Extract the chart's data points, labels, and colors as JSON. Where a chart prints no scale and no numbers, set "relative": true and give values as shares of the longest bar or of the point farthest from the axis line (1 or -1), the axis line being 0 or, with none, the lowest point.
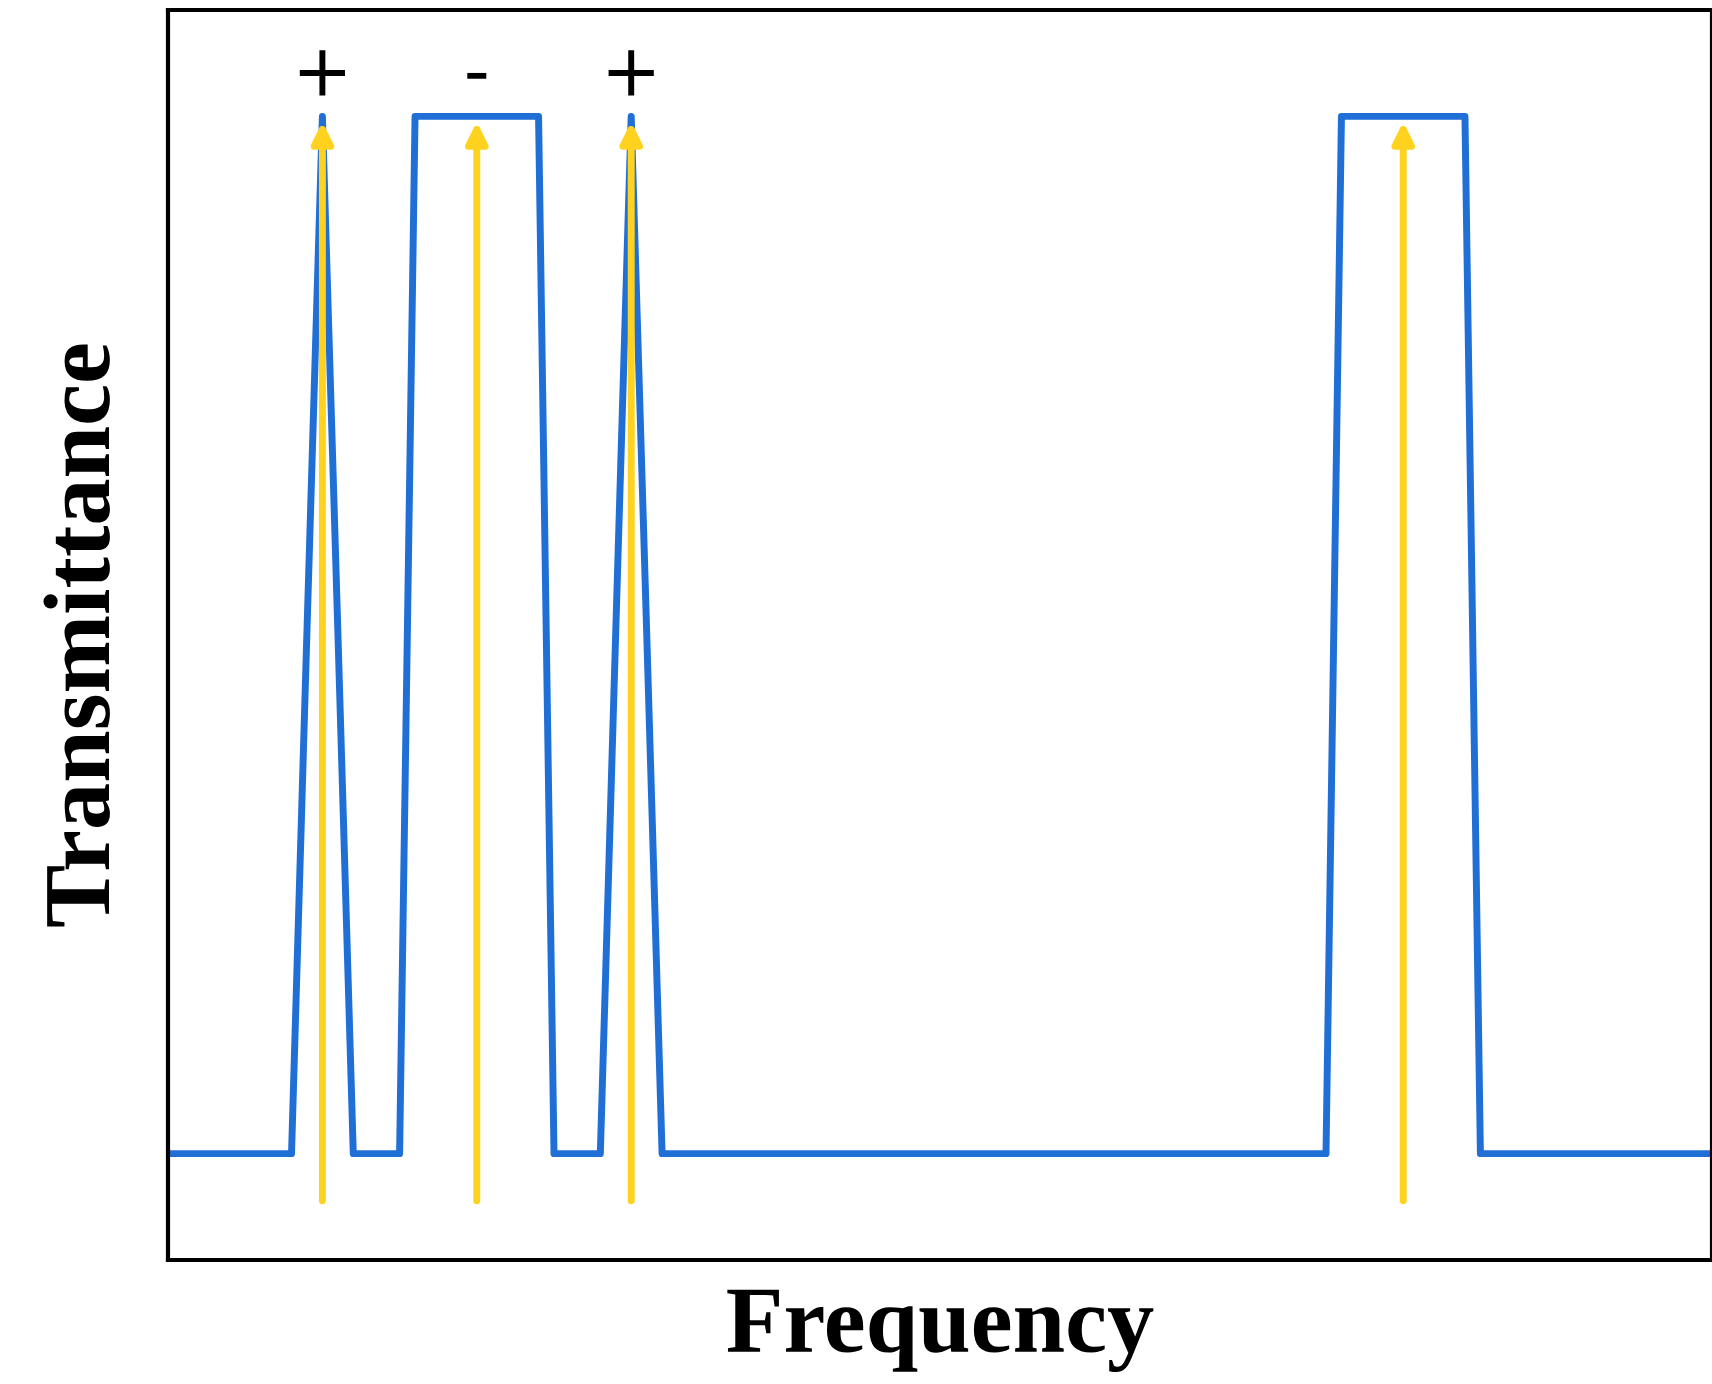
{
  "chart_data": {
    "type": "line",
    "relative": true,
    "xlabel": "Frequency",
    "ylabel": "Transmittance",
    "marker": "none",
    "line_style": "solid",
    "categories": [
      null,
      null,
      null,
      null,
      null,
      null,
      null,
      null,
      null,
      null,
      null,
      null,
      null,
      null,
      null,
      null,
      null,
      null,
      null,
      null,
      null,
      null,
      null,
      null,
      null,
      null,
      null,
      null,
      null,
      null,
      null,
      null,
      null,
      null,
      null,
      null,
      null,
      null,
      null,
      null,
      null,
      null,
      null,
      null,
      null,
      null,
      null,
      null,
      null,
      null,
      null,
      null,
      null,
      null,
      null,
      null,
      null,
      null,
      null,
      null,
      null,
      null,
      null,
      null,
      null,
      null,
      null,
      null,
      null,
      null,
      null,
      null,
      null,
      null,
      null,
      null,
      null,
      null,
      null,
      null,
      null,
      null,
      null,
      null,
      null,
      null,
      null,
      null,
      null,
      null,
      null,
      null,
      null,
      null,
      null,
      null,
      null,
      null,
      null,
      null,
      null
    ],
    "series": [
      {
        "color": "#1f6fd6",
        "values": [
          0.093,
          0.093,
          0.093,
          0.093,
          0.093,
          0.093,
          0.093,
          0.093,
          0.093,
          0.55,
          1,
          0.55,
          0.093,
          0.093,
          0.093,
          0.093,
          1,
          1,
          1,
          1,
          1,
          1,
          1,
          1,
          1,
          0.093,
          0.093,
          0.093,
          0.093,
          0.55,
          1,
          0.55,
          0.093,
          0.093,
          0.093,
          0.093,
          0.093,
          0.093,
          0.093,
          0.093,
          0.093,
          0.093,
          0.093,
          0.093,
          0.093,
          0.093,
          0.093,
          0.093,
          0.093,
          0.093,
          0.093,
          0.093,
          0.093,
          0.093,
          0.093,
          0.093,
          0.093,
          0.093,
          0.093,
          0.093,
          0.093,
          0.093,
          0.093,
          0.093,
          0.093,
          0.093,
          0.093,
          0.093,
          0.093,
          0.093,
          0.093,
          0.093,
          0.093,
          0.093,
          0.093,
          0.093,
          1,
          1,
          1,
          1,
          1,
          1,
          1,
          1,
          1,
          0.093,
          0.093,
          0.093,
          0.093,
          0.093,
          0.093,
          0.093,
          0.093,
          0.093,
          0.093,
          0.093,
          0.093,
          0.093,
          0.093,
          0.093,
          0.093
        ]
      }
    ],
    "annotations": [
      "+",
      "-",
      "+"
    ]
  }
}
